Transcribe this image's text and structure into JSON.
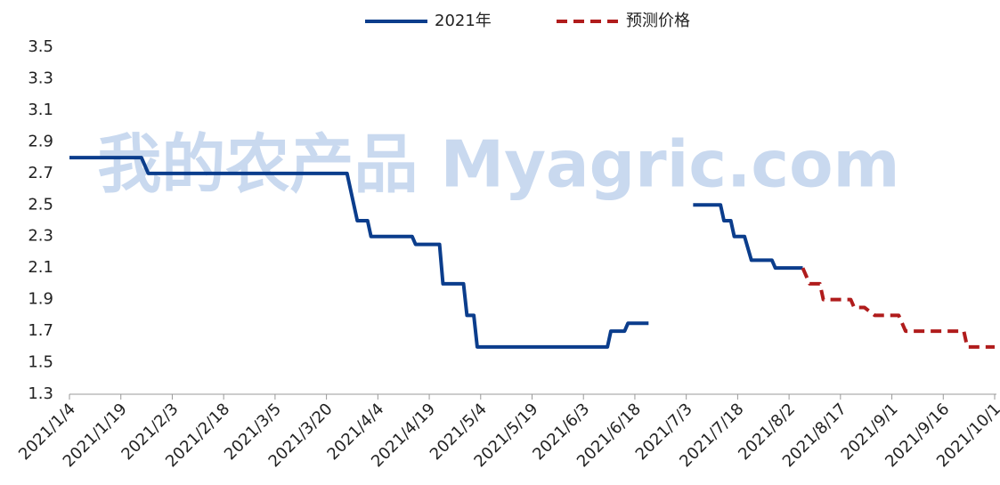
{
  "chart_data": {
    "type": "line",
    "watermark": "我的农产品 Myagric.com",
    "series": [
      {
        "name": "2021年",
        "color": "#0b3d8c",
        "dash": false,
        "x": [
          "2021/1/4",
          "2021/1/25",
          "2021/1/27",
          "2021/3/26",
          "2021/3/29",
          "2021/4/1",
          "2021/4/2",
          "2021/4/14",
          "2021/4/15",
          "2021/4/22",
          "2021/4/23",
          "2021/4/29",
          "2021/4/30",
          "2021/5/2",
          "2021/5/3",
          "2021/6/10",
          "2021/6/11",
          "2021/6/15",
          "2021/6/16",
          "2021/6/22",
          "2021/6/28",
          "2021/7/5",
          "2021/7/13",
          "2021/7/14",
          "2021/7/16",
          "2021/7/17",
          "2021/7/20",
          "2021/7/22",
          "2021/7/28",
          "2021/7/29",
          "2021/8/6"
        ],
        "values": [
          2.8,
          2.8,
          2.7,
          2.7,
          2.4,
          2.4,
          2.3,
          2.3,
          2.25,
          2.25,
          2.0,
          2.0,
          1.8,
          1.8,
          1.6,
          1.6,
          1.7,
          1.7,
          1.75,
          1.75,
          null,
          2.5,
          2.5,
          2.4,
          2.4,
          2.3,
          2.3,
          2.15,
          2.15,
          2.1,
          2.1
        ]
      },
      {
        "name": "预测价格",
        "color": "#b01c1c",
        "dash": true,
        "x": [
          "2021/8/6",
          "2021/8/8",
          "2021/8/11",
          "2021/8/12",
          "2021/8/20",
          "2021/8/21",
          "2021/8/24",
          "2021/8/27",
          "2021/9/3",
          "2021/9/5",
          "2021/9/22",
          "2021/9/23",
          "2021/10/1"
        ],
        "values": [
          2.1,
          2.0,
          2.0,
          1.9,
          1.9,
          1.85,
          1.85,
          1.8,
          1.8,
          1.7,
          1.7,
          1.6,
          1.6
        ]
      }
    ],
    "xlim": [
      "2021/1/4",
      "2021/10/1"
    ],
    "xticks": [
      "2021/1/4",
      "2021/1/19",
      "2021/2/3",
      "2021/2/18",
      "2021/3/5",
      "2021/3/20",
      "2021/4/4",
      "2021/4/19",
      "2021/5/4",
      "2021/5/19",
      "2021/6/3",
      "2021/6/18",
      "2021/7/3",
      "2021/7/18",
      "2021/8/2",
      "2021/8/17",
      "2021/9/1",
      "2021/9/16",
      "2021/10/1"
    ],
    "ylim": [
      1.3,
      3.5
    ],
    "yticks": [
      1.3,
      1.5,
      1.7,
      1.9,
      2.1,
      2.3,
      2.5,
      2.7,
      2.9,
      3.1,
      3.3,
      3.5
    ],
    "legend": "top",
    "grid": false
  }
}
